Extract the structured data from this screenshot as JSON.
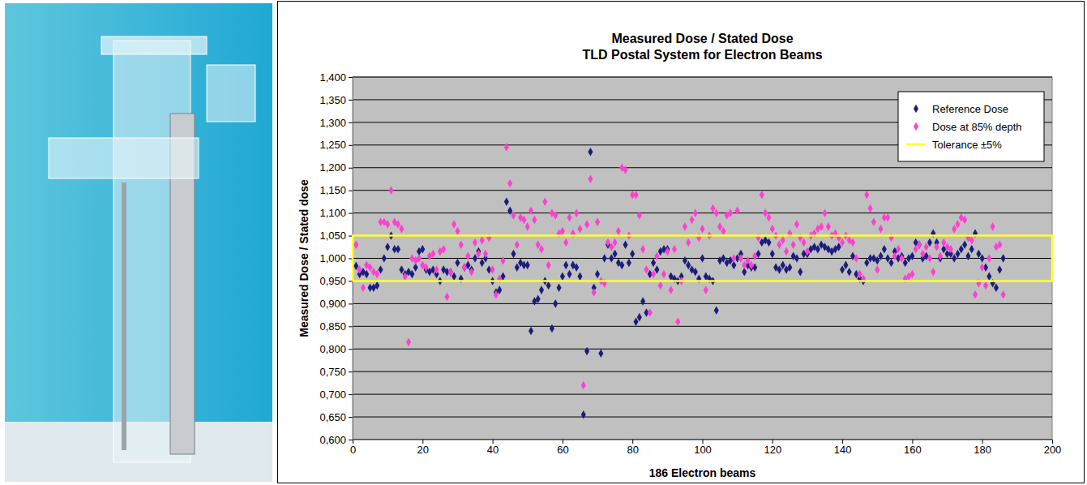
{
  "chart_data": {
    "type": "scatter",
    "title": "Measured Dose / Stated Dose",
    "subtitle": "TLD Postal System for Electron Beams",
    "x_label": "186 Electron beams",
    "y_label": "Measured Dose / Stated dose",
    "x": [
      1,
      2,
      3,
      4,
      5,
      6,
      7,
      8,
      9,
      10,
      11,
      12,
      13,
      14,
      15,
      16,
      17,
      18,
      19,
      20,
      21,
      22,
      23,
      24,
      25,
      26,
      27,
      28,
      29,
      30,
      31,
      32,
      33,
      34,
      35,
      36,
      37,
      38,
      39,
      40,
      41,
      42,
      43,
      44,
      45,
      46,
      47,
      48,
      49,
      50,
      51,
      52,
      53,
      54,
      55,
      56,
      57,
      58,
      59,
      60,
      61,
      62,
      63,
      64,
      65,
      66,
      67,
      68,
      69,
      70,
      71,
      72,
      73,
      74,
      75,
      76,
      77,
      78,
      79,
      80,
      81,
      82,
      83,
      84,
      85,
      86,
      87,
      88,
      89,
      90,
      91,
      92,
      93,
      94,
      95,
      96,
      97,
      98,
      99,
      100,
      101,
      102,
      103,
      104,
      105,
      106,
      107,
      108,
      109,
      110,
      111,
      112,
      113,
      114,
      115,
      116,
      117,
      118,
      119,
      120,
      121,
      122,
      123,
      124,
      125,
      126,
      127,
      128,
      129,
      130,
      131,
      132,
      133,
      134,
      135,
      136,
      137,
      138,
      139,
      140,
      141,
      142,
      143,
      144,
      145,
      146,
      147,
      148,
      149,
      150,
      151,
      152,
      153,
      154,
      155,
      156,
      157,
      158,
      159,
      160,
      161,
      162,
      163,
      164,
      165,
      166,
      167,
      168,
      169,
      170,
      171,
      172,
      173,
      174,
      175,
      176,
      177,
      178,
      179,
      180,
      181,
      182,
      183,
      184,
      185,
      186
    ],
    "series": [
      {
        "name": "Reference Dose",
        "type": "scatter",
        "marker": "diamond",
        "color": "#1c1c7c",
        "values": [
          0.983,
          0.965,
          0.97,
          0.965,
          0.935,
          0.935,
          0.94,
          0.975,
          1.0,
          1.025,
          1.05,
          1.02,
          1.02,
          0.975,
          0.965,
          0.97,
          0.965,
          0.98,
          1.015,
          1.02,
          0.975,
          0.97,
          0.975,
          0.965,
          0.95,
          0.975,
          0.97,
          0.97,
          0.96,
          0.99,
          0.955,
          0.98,
          0.985,
          0.975,
          1.0,
          1.015,
          0.99,
          1.0,
          0.975,
          0.95,
          0.925,
          0.93,
          0.96,
          1.125,
          1.105,
          1.01,
          0.98,
          0.99,
          0.985,
          0.985,
          0.84,
          0.905,
          0.91,
          0.93,
          0.95,
          0.94,
          0.845,
          0.9,
          0.935,
          0.96,
          0.985,
          0.965,
          0.985,
          0.98,
          0.96,
          0.655,
          0.795,
          1.235,
          0.935,
          0.965,
          0.79,
          1.0,
          1.03,
          1.0,
          1.01,
          0.99,
          0.985,
          1.03,
          0.99,
          1.01,
          0.86,
          0.87,
          0.905,
          0.88,
          0.965,
          0.99,
          0.975,
          1.015,
          1.02,
          1.02,
          0.96,
          0.955,
          0.95,
          0.96,
          0.995,
          0.985,
          0.975,
          0.97,
          0.955,
          1.0,
          0.96,
          0.955,
          0.95,
          0.885,
          0.995,
          1.0,
          0.99,
          0.995,
          0.985,
          1.0,
          1.01,
          0.97,
          0.985,
          0.98,
          0.98,
          1.01,
          1.035,
          1.04,
          1.035,
          1.01,
          0.98,
          0.975,
          0.985,
          0.975,
          0.98,
          1.005,
          1.0,
          0.97,
          1.01,
          1.01,
          1.02,
          1.025,
          1.02,
          1.03,
          1.025,
          1.02,
          1.015,
          1.02,
          1.025,
          0.975,
          0.985,
          0.97,
          1.005,
          0.965,
          0.955,
          0.95,
          0.99,
          1.0,
          1.0,
          0.995,
          1.005,
          1.02,
          1.0,
          0.99,
          1.015,
          1.0,
          1.005,
          0.99,
          1.0,
          1.005,
          1.035,
          1.03,
          1.0,
          1.005,
          1.035,
          1.055,
          1.035,
          1.0,
          1.02,
          1.01,
          1.01,
          1.0,
          1.01,
          1.02,
          1.03,
          1.005,
          1.02,
          1.055,
          1.01,
          1.0,
          0.98,
          0.96,
          0.945,
          0.935,
          0.975,
          1.0
        ]
      },
      {
        "name": "Dose at 85% depth",
        "type": "scatter",
        "marker": "diamond",
        "color": "#ff3fd2",
        "values": [
          1.03,
          0.975,
          0.935,
          0.985,
          0.98,
          0.97,
          0.965,
          1.08,
          1.08,
          1.075,
          1.15,
          1.08,
          1.075,
          1.065,
          0.96,
          0.815,
          1.0,
          0.995,
          1.0,
          0.985,
          0.98,
          1.005,
          1.01,
          0.975,
          1.015,
          1.02,
          0.915,
          0.97,
          1.075,
          1.06,
          1.03,
          0.98,
          1.005,
          0.97,
          1.035,
          1.01,
          1.04,
          1.01,
          1.045,
          0.975,
          0.92,
          0.955,
          0.995,
          1.245,
          1.165,
          1.095,
          1.03,
          1.09,
          1.085,
          1.07,
          1.105,
          1.085,
          1.03,
          1.02,
          1.125,
          0.985,
          1.1,
          1.095,
          1.055,
          1.06,
          1.035,
          1.09,
          1.055,
          1.1,
          1.065,
          0.72,
          1.075,
          1.175,
          0.925,
          1.08,
          0.95,
          0.945,
          1.035,
          1.025,
          1.035,
          1.06,
          1.2,
          1.195,
          1.05,
          1.14,
          1.14,
          1.095,
          1.02,
          0.975,
          0.88,
          0.965,
          1.005,
          0.94,
          0.965,
          1.015,
          0.93,
          1.02,
          0.86,
          0.95,
          1.07,
          1.035,
          1.085,
          1.1,
          1.045,
          1.065,
          0.93,
          1.05,
          1.11,
          1.1,
          1.07,
          1.06,
          1.095,
          1.1,
          1.0,
          1.105,
          1.0,
          0.985,
          0.995,
          0.985,
          1.005,
          1.045,
          1.14,
          1.1,
          1.09,
          1.065,
          1.05,
          1.03,
          1.04,
          1.015,
          1.055,
          1.03,
          1.075,
          1.045,
          1.035,
          1.015,
          1.05,
          1.055,
          1.065,
          1.07,
          1.1,
          1.07,
          1.05,
          1.055,
          1.045,
          1.035,
          1.05,
          1.04,
          1.035,
          1.0,
          0.965,
          0.955,
          1.14,
          1.11,
          1.08,
          0.975,
          1.065,
          1.09,
          1.09,
          1.045,
          1.005,
          1.02,
          1.0,
          0.955,
          0.96,
          0.965,
          1.02,
          1.03,
          1.01,
          1.025,
          1.0,
          0.97,
          1.025,
          1.005,
          1.035,
          1.025,
          1.02,
          1.065,
          1.075,
          1.09,
          1.085,
          1.045,
          1.04,
          0.92,
          0.945,
          0.98,
          0.94,
          1.0,
          1.07,
          1.025,
          1.03,
          0.92
        ]
      },
      {
        "name": "Tolerance ±5%",
        "type": "line",
        "line_style": "solid",
        "color": "#ffff33",
        "x": [
          0,
          0,
          200,
          200,
          0
        ],
        "values": [
          0.95,
          1.05,
          1.05,
          0.95,
          0.95
        ]
      }
    ],
    "xlim": [
      0,
      200
    ],
    "xticks": [
      0,
      20,
      40,
      60,
      80,
      100,
      120,
      140,
      160,
      180,
      200
    ],
    "ylim": [
      0.6,
      1.4
    ],
    "yticks": [
      {
        "value": 0.6,
        "label": "0,600"
      },
      {
        "value": 0.65,
        "label": "0,650"
      },
      {
        "value": 0.7,
        "label": "0,700"
      },
      {
        "value": 0.75,
        "label": "0,750"
      },
      {
        "value": 0.8,
        "label": "0,800"
      },
      {
        "value": 0.85,
        "label": "0,850"
      },
      {
        "value": 0.9,
        "label": "0,900"
      },
      {
        "value": 0.95,
        "label": "0,950"
      },
      {
        "value": 1.0,
        "label": "1,000"
      },
      {
        "value": 1.05,
        "label": "1,050"
      },
      {
        "value": 1.1,
        "label": "1,100"
      },
      {
        "value": 1.15,
        "label": "1,150"
      },
      {
        "value": 1.2,
        "label": "1,200"
      },
      {
        "value": 1.25,
        "label": "1,250"
      },
      {
        "value": 1.3,
        "label": "1,300"
      },
      {
        "value": 1.35,
        "label": "1,350"
      },
      {
        "value": 1.4,
        "label": "1,400"
      }
    ],
    "grid": true,
    "legend": "top-right"
  }
}
